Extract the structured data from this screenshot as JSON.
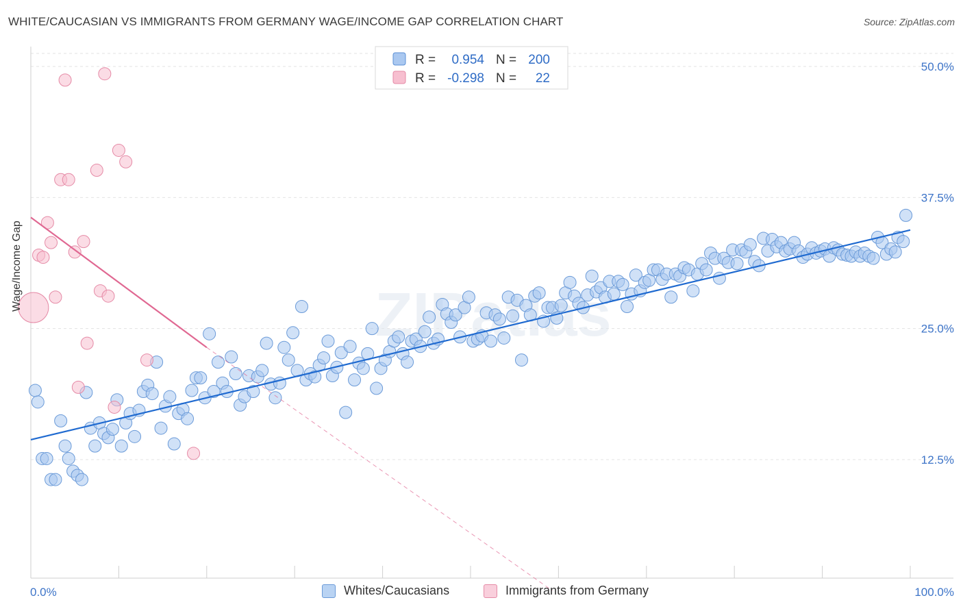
{
  "title": "WHITE/CAUCASIAN VS IMMIGRANTS FROM GERMANY WAGE/INCOME GAP CORRELATION CHART",
  "source": "Source: ZipAtlas.com",
  "watermark": "ZIPatlas",
  "legend_top": [
    {
      "r_label": "R =",
      "r_value": "0.954",
      "n_label": "N =",
      "n_value": "200",
      "color": "#aac8f0",
      "border": "#5b8fd6"
    },
    {
      "r_label": "R =",
      "r_value": "-0.298",
      "n_label": "N =",
      "n_value": "22",
      "color": "#f7bfd0",
      "border": "#e58aa6"
    }
  ],
  "chart_data": {
    "type": "scatter",
    "xlabel": "",
    "ylabel": "Wage/Income Gap",
    "xlim": [
      0,
      100
    ],
    "ylim": [
      0,
      52
    ],
    "x_tick_labels": [
      "0.0%",
      "100.0%"
    ],
    "y_ticks": [
      12.5,
      25.0,
      37.5,
      50.0
    ],
    "y_tick_labels": [
      "12.5%",
      "25.0%",
      "37.5%",
      "50.0%"
    ],
    "grid": true,
    "series": [
      {
        "name": "Whites/Caucasians",
        "color": "#aac8f0",
        "stroke": "#6a9ad8",
        "line_color": "#1f6ad0",
        "trend": {
          "x": [
            0,
            100
          ],
          "y": [
            14.4,
            34.4
          ]
        },
        "points": [
          [
            0.5,
            19.1
          ],
          [
            0.8,
            18.0
          ],
          [
            1.3,
            12.6
          ],
          [
            1.8,
            12.6
          ],
          [
            2.3,
            10.6
          ],
          [
            2.8,
            10.6
          ],
          [
            3.4,
            16.2
          ],
          [
            3.9,
            13.8
          ],
          [
            4.3,
            12.6
          ],
          [
            4.8,
            11.4
          ],
          [
            5.3,
            11.0
          ],
          [
            5.8,
            10.6
          ],
          [
            6.3,
            18.9
          ],
          [
            6.8,
            15.5
          ],
          [
            7.3,
            13.8
          ],
          [
            7.8,
            16.0
          ],
          [
            8.3,
            15.0
          ],
          [
            8.8,
            14.6
          ],
          [
            9.3,
            15.4
          ],
          [
            9.8,
            18.2
          ],
          [
            10.3,
            13.8
          ],
          [
            10.8,
            16.0
          ],
          [
            11.3,
            16.9
          ],
          [
            11.8,
            14.7
          ],
          [
            12.3,
            17.2
          ],
          [
            12.8,
            19.0
          ],
          [
            13.3,
            19.6
          ],
          [
            13.8,
            18.8
          ],
          [
            14.3,
            21.8
          ],
          [
            14.8,
            15.5
          ],
          [
            15.3,
            17.6
          ],
          [
            15.8,
            18.5
          ],
          [
            16.3,
            14.0
          ],
          [
            16.8,
            16.9
          ],
          [
            17.3,
            17.3
          ],
          [
            17.8,
            16.4
          ],
          [
            18.3,
            19.1
          ],
          [
            18.8,
            20.3
          ],
          [
            19.3,
            20.3
          ],
          [
            19.8,
            18.4
          ],
          [
            20.3,
            24.5
          ],
          [
            20.8,
            19.0
          ],
          [
            21.3,
            21.8
          ],
          [
            21.8,
            19.8
          ],
          [
            22.3,
            19.0
          ],
          [
            22.8,
            22.3
          ],
          [
            23.3,
            20.7
          ],
          [
            23.8,
            17.7
          ],
          [
            24.3,
            18.5
          ],
          [
            24.8,
            20.5
          ],
          [
            25.3,
            19.0
          ],
          [
            25.8,
            20.4
          ],
          [
            26.3,
            21.0
          ],
          [
            26.8,
            23.6
          ],
          [
            27.3,
            19.7
          ],
          [
            27.8,
            18.4
          ],
          [
            28.3,
            19.8
          ],
          [
            28.8,
            23.2
          ],
          [
            29.3,
            22.0
          ],
          [
            29.8,
            24.6
          ],
          [
            30.3,
            21.0
          ],
          [
            30.8,
            27.1
          ],
          [
            31.3,
            20.1
          ],
          [
            31.8,
            20.7
          ],
          [
            32.3,
            20.4
          ],
          [
            32.8,
            21.5
          ],
          [
            33.3,
            22.2
          ],
          [
            33.8,
            23.8
          ],
          [
            34.3,
            20.5
          ],
          [
            34.8,
            21.3
          ],
          [
            35.3,
            22.7
          ],
          [
            35.8,
            17.0
          ],
          [
            36.3,
            23.3
          ],
          [
            36.8,
            20.1
          ],
          [
            37.3,
            21.7
          ],
          [
            37.8,
            21.2
          ],
          [
            38.3,
            22.6
          ],
          [
            38.8,
            25.0
          ],
          [
            39.3,
            19.3
          ],
          [
            39.8,
            21.2
          ],
          [
            40.3,
            22.0
          ],
          [
            40.8,
            22.8
          ],
          [
            41.3,
            23.8
          ],
          [
            41.8,
            24.2
          ],
          [
            42.3,
            22.6
          ],
          [
            42.8,
            21.8
          ],
          [
            43.3,
            23.8
          ],
          [
            43.8,
            24.0
          ],
          [
            44.3,
            23.3
          ],
          [
            44.8,
            24.7
          ],
          [
            45.3,
            26.1
          ],
          [
            45.8,
            23.6
          ],
          [
            46.3,
            24.0
          ],
          [
            46.8,
            27.3
          ],
          [
            47.3,
            26.4
          ],
          [
            47.8,
            25.6
          ],
          [
            48.3,
            26.3
          ],
          [
            48.8,
            24.2
          ],
          [
            49.3,
            27.0
          ],
          [
            49.8,
            28.0
          ],
          [
            50.3,
            23.8
          ],
          [
            50.8,
            24.0
          ],
          [
            51.3,
            24.3
          ],
          [
            51.8,
            26.5
          ],
          [
            52.3,
            23.8
          ],
          [
            52.8,
            26.3
          ],
          [
            53.3,
            25.9
          ],
          [
            53.8,
            24.1
          ],
          [
            54.3,
            28.0
          ],
          [
            54.8,
            26.2
          ],
          [
            55.3,
            27.7
          ],
          [
            55.8,
            22.0
          ],
          [
            56.3,
            27.2
          ],
          [
            56.8,
            26.3
          ],
          [
            57.3,
            28.1
          ],
          [
            57.8,
            28.4
          ],
          [
            58.3,
            25.7
          ],
          [
            58.8,
            27.0
          ],
          [
            59.3,
            27.0
          ],
          [
            59.8,
            26.0
          ],
          [
            60.3,
            27.2
          ],
          [
            60.8,
            28.4
          ],
          [
            61.3,
            29.4
          ],
          [
            61.8,
            28.1
          ],
          [
            62.3,
            27.4
          ],
          [
            62.8,
            27.0
          ],
          [
            63.3,
            28.2
          ],
          [
            63.8,
            30.0
          ],
          [
            64.3,
            28.5
          ],
          [
            64.8,
            28.9
          ],
          [
            65.3,
            28.0
          ],
          [
            65.8,
            29.5
          ],
          [
            66.3,
            28.3
          ],
          [
            66.8,
            29.5
          ],
          [
            67.3,
            29.2
          ],
          [
            67.8,
            27.1
          ],
          [
            68.3,
            28.3
          ],
          [
            68.8,
            30.1
          ],
          [
            69.3,
            28.6
          ],
          [
            69.8,
            29.4
          ],
          [
            70.3,
            29.6
          ],
          [
            70.8,
            30.6
          ],
          [
            71.3,
            30.6
          ],
          [
            71.8,
            29.7
          ],
          [
            72.3,
            30.2
          ],
          [
            72.8,
            28.0
          ],
          [
            73.3,
            30.2
          ],
          [
            73.8,
            30.0
          ],
          [
            74.3,
            30.8
          ],
          [
            74.8,
            30.6
          ],
          [
            75.3,
            28.6
          ],
          [
            75.8,
            30.2
          ],
          [
            76.3,
            31.2
          ],
          [
            76.8,
            30.6
          ],
          [
            77.3,
            32.2
          ],
          [
            77.8,
            31.7
          ],
          [
            78.3,
            29.8
          ],
          [
            78.8,
            31.7
          ],
          [
            79.3,
            31.3
          ],
          [
            79.8,
            32.5
          ],
          [
            80.3,
            31.2
          ],
          [
            80.8,
            32.5
          ],
          [
            81.3,
            32.3
          ],
          [
            81.8,
            33.0
          ],
          [
            82.3,
            31.4
          ],
          [
            82.8,
            31.0
          ],
          [
            83.3,
            33.6
          ],
          [
            83.8,
            32.4
          ],
          [
            84.3,
            33.5
          ],
          [
            84.8,
            32.8
          ],
          [
            85.3,
            33.2
          ],
          [
            85.8,
            32.4
          ],
          [
            86.3,
            32.6
          ],
          [
            86.8,
            33.2
          ],
          [
            87.3,
            32.4
          ],
          [
            87.8,
            31.8
          ],
          [
            88.3,
            32.1
          ],
          [
            88.8,
            32.7
          ],
          [
            89.3,
            32.2
          ],
          [
            89.8,
            32.4
          ],
          [
            90.3,
            32.6
          ],
          [
            90.8,
            31.9
          ],
          [
            91.3,
            32.7
          ],
          [
            91.8,
            32.5
          ],
          [
            92.3,
            32.1
          ],
          [
            92.8,
            32.0
          ],
          [
            93.3,
            31.9
          ],
          [
            93.8,
            32.3
          ],
          [
            94.3,
            31.9
          ],
          [
            94.8,
            32.2
          ],
          [
            95.3,
            31.9
          ],
          [
            95.8,
            31.7
          ],
          [
            96.3,
            33.7
          ],
          [
            96.8,
            33.2
          ],
          [
            97.3,
            32.1
          ],
          [
            97.8,
            32.6
          ],
          [
            98.3,
            32.3
          ],
          [
            98.6,
            33.7
          ],
          [
            99.2,
            33.3
          ],
          [
            99.5,
            35.8
          ]
        ]
      },
      {
        "name": "Immigrants from Germany",
        "color": "#f7bfd0",
        "stroke": "#e58aa6",
        "line_color": "#e06892",
        "trend": {
          "x": [
            0,
            20
          ],
          "y": [
            35.6,
            23.2
          ]
        },
        "trend_ext": {
          "x": [
            20,
            59.3
          ],
          "y": [
            23.2,
            0
          ]
        },
        "points": [
          [
            0.3,
            27.0,
            "big"
          ],
          [
            0.9,
            32.0
          ],
          [
            1.4,
            31.8
          ],
          [
            1.9,
            35.1
          ],
          [
            2.3,
            33.2
          ],
          [
            2.8,
            28.0
          ],
          [
            3.4,
            39.2
          ],
          [
            3.9,
            48.7
          ],
          [
            4.3,
            39.2
          ],
          [
            5.0,
            32.3
          ],
          [
            6.0,
            33.3
          ],
          [
            6.4,
            23.6
          ],
          [
            7.5,
            40.1
          ],
          [
            7.9,
            28.6
          ],
          [
            8.4,
            49.3
          ],
          [
            8.8,
            28.1
          ],
          [
            9.5,
            17.5
          ],
          [
            10.0,
            42.0
          ],
          [
            10.8,
            40.9
          ],
          [
            13.2,
            22.0
          ],
          [
            5.4,
            19.4
          ],
          [
            18.5,
            13.1
          ]
        ]
      }
    ]
  }
}
